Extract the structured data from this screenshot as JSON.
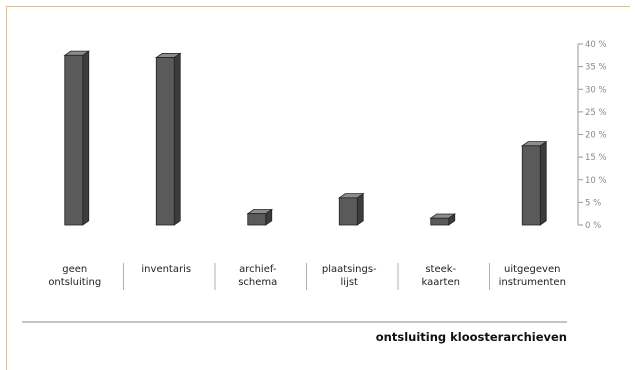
{
  "chart_data": {
    "type": "bar",
    "title": "ontsluiting kloosterarchieven",
    "categories": [
      [
        "geen",
        "ontsluiting"
      ],
      [
        "inventaris"
      ],
      [
        "archief-",
        "schema"
      ],
      [
        "plaatsings-",
        "lijst"
      ],
      [
        "steek-",
        "kaarten"
      ],
      [
        "uitgegeven",
        "instrumenten"
      ]
    ],
    "values": [
      37.5,
      37,
      2.5,
      6,
      1.5,
      17.5
    ],
    "ylim": [
      0,
      40
    ],
    "yticks": [
      "0 %",
      "5 %",
      "10 %",
      "15 %",
      "20 %",
      "25 %",
      "30 %",
      "35 %",
      "40 %"
    ],
    "grid": false,
    "legend": "none",
    "colors": {
      "bar_front": "#5a5a5a",
      "bar_side": "#3c3c3c",
      "bar_top": "#8c8c8c",
      "bar_stroke": "#222222",
      "axis": "#9a9a9a",
      "frame": "#e2c27a",
      "divider": "#b0b0b0"
    }
  }
}
